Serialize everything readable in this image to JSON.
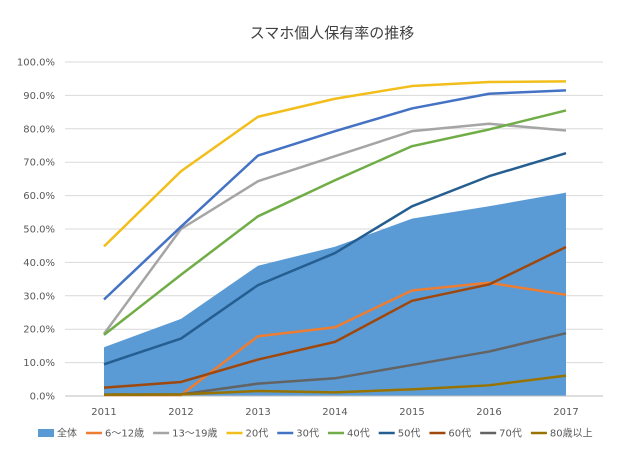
{
  "chart_data": {
    "type": "area+line",
    "title": "スマホ個人保有率の推移",
    "x": [
      "2011",
      "2012",
      "2013",
      "2014",
      "2015",
      "2016",
      "2017"
    ],
    "ylim": [
      0,
      100
    ],
    "yticks": [
      "0.0%",
      "10.0%",
      "20.0%",
      "30.0%",
      "40.0%",
      "50.0%",
      "60.0%",
      "70.0%",
      "80.0%",
      "90.0%",
      "100.0%"
    ],
    "grid": true,
    "legend_position": "bottom",
    "series": [
      {
        "name": "全体",
        "kind": "area",
        "color": "#5b9bd5",
        "values": [
          14.6,
          23.1,
          39.0,
          44.7,
          53.1,
          56.8,
          60.9
        ]
      },
      {
        "name": "6～12歳",
        "kind": "line",
        "color": "#ed7d31",
        "values": [
          0.3,
          0.3,
          17.9,
          20.6,
          31.6,
          33.9,
          30.3
        ]
      },
      {
        "name": "13～19歳",
        "kind": "line",
        "color": "#a5a5a5",
        "values": [
          18.6,
          50.0,
          64.3,
          71.8,
          79.3,
          81.5,
          79.5
        ]
      },
      {
        "name": "20代",
        "kind": "line",
        "color": "#f2be1c",
        "values": [
          44.8,
          67.3,
          83.6,
          89.0,
          92.8,
          94.0,
          94.2
        ]
      },
      {
        "name": "30代",
        "kind": "line",
        "color": "#4472c4",
        "values": [
          28.9,
          50.7,
          72.0,
          79.3,
          86.1,
          90.5,
          91.5
        ]
      },
      {
        "name": "40代",
        "kind": "line",
        "color": "#70ad47",
        "values": [
          18.3,
          36.3,
          53.8,
          64.6,
          74.8,
          79.8,
          85.5
        ]
      },
      {
        "name": "50代",
        "kind": "line",
        "color": "#255e91",
        "values": [
          9.5,
          17.2,
          33.2,
          42.8,
          56.8,
          65.8,
          72.7
        ]
      },
      {
        "name": "60代",
        "kind": "line",
        "color": "#9e480e",
        "values": [
          2.5,
          4.2,
          10.9,
          16.2,
          28.5,
          33.4,
          44.6
        ]
      },
      {
        "name": "70代",
        "kind": "line",
        "color": "#636363",
        "values": [
          0.4,
          0.5,
          3.7,
          5.3,
          9.3,
          13.3,
          18.8
        ]
      },
      {
        "name": "80歳以上",
        "kind": "line",
        "color": "#997300",
        "values": [
          0.4,
          0.5,
          1.5,
          1.1,
          2.0,
          3.2,
          6.1
        ]
      }
    ]
  }
}
